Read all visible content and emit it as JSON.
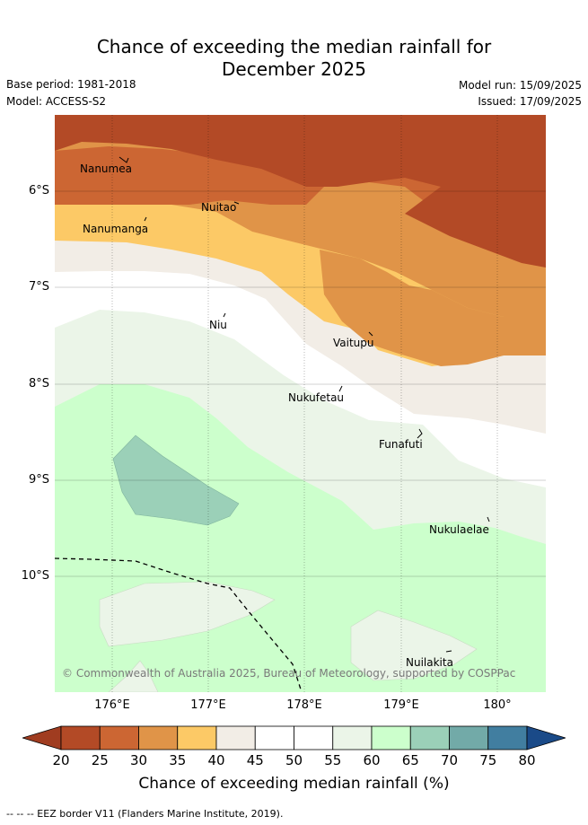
{
  "title_line1": "Chance of exceeding the median rainfall for",
  "title_line2": "December 2025",
  "meta": {
    "base_period": "Base period: 1981-2018",
    "model": "Model: ACCESS-S2",
    "model_run": "Model run: 15/09/2025",
    "issued": "Issued: 17/09/2025"
  },
  "axes": {
    "lat_labels": [
      "6°S",
      "7°S",
      "8°S",
      "9°S",
      "10°S"
    ],
    "lon_labels": [
      "176°E",
      "177°E",
      "178°E",
      "179°E",
      "180°"
    ]
  },
  "places": [
    {
      "name": "Nanumea"
    },
    {
      "name": "Nuitao"
    },
    {
      "name": "Nanumanga"
    },
    {
      "name": "Niu"
    },
    {
      "name": "Vaitupu"
    },
    {
      "name": "Nukufetau"
    },
    {
      "name": "Funafuti"
    },
    {
      "name": "Nukulaelae"
    },
    {
      "name": "Nuilakita"
    }
  ],
  "copyright": "© Commonwealth of Australia 2025, Bureau of Meteorology, supported by COSPPac",
  "colorbar": {
    "ticks": [
      "20",
      "25",
      "30",
      "35",
      "40",
      "45",
      "50",
      "55",
      "60",
      "65",
      "70",
      "75",
      "80"
    ],
    "colors": [
      "#b34a26",
      "#cc6633",
      "#e09448",
      "#fcc966",
      "#f2ede6",
      "#ffffff",
      "#ffffff",
      "#ebf5e8",
      "#ccffcc",
      "#9bd0b8",
      "#72aaa8",
      "#417ea0"
    ],
    "under_color": "#a03c20",
    "over_color": "#1a4a88",
    "label": "Chance of exceeding median rainfall (%)"
  },
  "footer": "--  --  -- EEZ border V11 (Flanders Marine Institute, 2019)."
}
